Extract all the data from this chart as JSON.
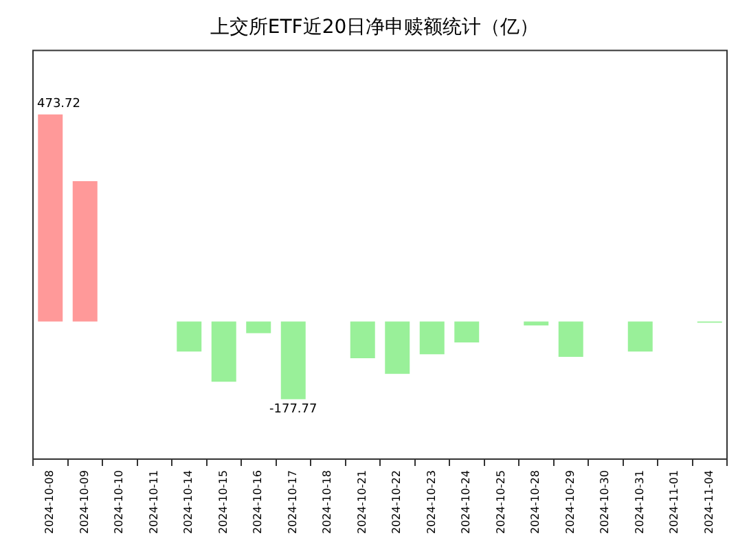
{
  "chart_data": {
    "type": "bar",
    "title": "上交所ETF近20日净申赎额统计（亿）",
    "categories": [
      "2024-10-08",
      "2024-10-09",
      "2024-10-10",
      "2024-10-11",
      "2024-10-14",
      "2024-10-15",
      "2024-10-16",
      "2024-10-17",
      "2024-10-18",
      "2024-10-21",
      "2024-10-22",
      "2024-10-23",
      "2024-10-24",
      "2024-10-25",
      "2024-10-28",
      "2024-10-29",
      "2024-10-30",
      "2024-10-31",
      "2024-11-01",
      "2024-11-04"
    ],
    "values": [
      473.72,
      321,
      null,
      null,
      -69,
      -138,
      -27,
      -177.77,
      null,
      -84,
      -120,
      -75,
      -48,
      null,
      -9,
      -81,
      null,
      -69,
      null,
      -3
    ],
    "colors": [
      "#ff9999",
      "#ff9999",
      "#ff9999",
      "#ff9999",
      "#99f099",
      "#99f099",
      "#99f099",
      "#99f099",
      "#99f099",
      "#99f099",
      "#99f099",
      "#99f099",
      "#99f099",
      "#99f099",
      "#99f099",
      "#99f099",
      "#99f099",
      "#99f099",
      "#99f099",
      "#99f099"
    ],
    "value_labels": [
      "473.72",
      null,
      null,
      null,
      null,
      null,
      null,
      "-177.77",
      null,
      null,
      null,
      null,
      null,
      null,
      null,
      null,
      null,
      null,
      null,
      null
    ],
    "ylim": [
      -315,
      620
    ]
  }
}
